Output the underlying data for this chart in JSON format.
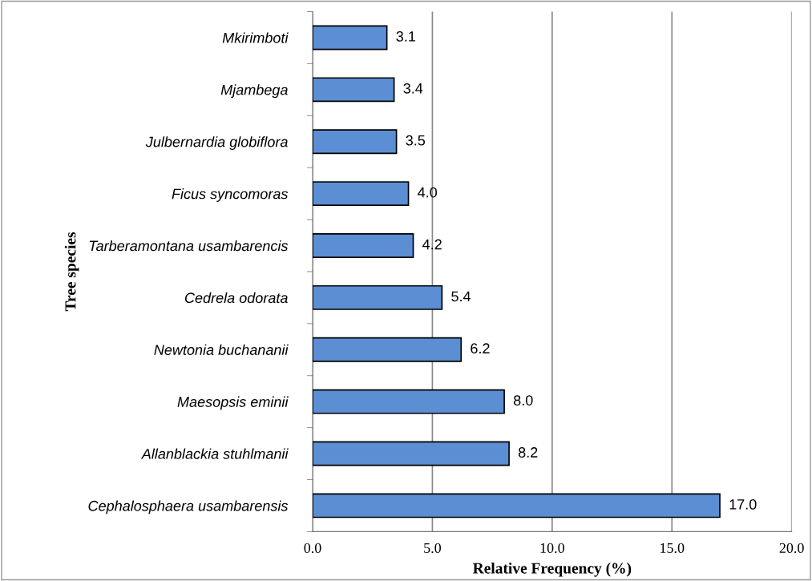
{
  "chart_data": {
    "type": "bar",
    "orientation": "horizontal",
    "xlabel": "Relative Frequency (%)",
    "ylabel": "Tree species",
    "categories": [
      "Mkirimboti",
      "Mjambega",
      "Julbernardia globiflora",
      "Ficus syncomoras",
      "Tarberamontana usambarencis",
      "Cedrela odorata",
      "Newtonia buchananii",
      "Maesopsis eminii",
      "Allanblackia stuhlmanii",
      "Cephalosphaera usambarensis"
    ],
    "values": [
      3.1,
      3.4,
      3.5,
      4.0,
      4.2,
      5.4,
      6.2,
      8.0,
      8.2,
      17.0
    ],
    "value_labels": [
      "3.1",
      "3.4",
      "3.5",
      "4.0",
      "4.2",
      "5.4",
      "6.2",
      "8.0",
      "8.2",
      "17.0"
    ],
    "color": "#5b8ed2",
    "xlim": [
      0,
      20
    ],
    "xticks": [
      {
        "value": 0,
        "label": "0.0"
      },
      {
        "value": 5,
        "label": "5.0"
      },
      {
        "value": 10,
        "label": "10.0"
      },
      {
        "value": 15,
        "label": "15.0"
      },
      {
        "value": 20,
        "label": "20.0"
      }
    ],
    "grid": "x",
    "legend": false
  }
}
